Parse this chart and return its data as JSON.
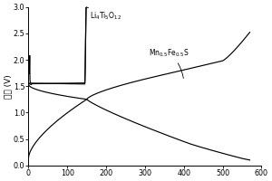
{
  "title": "",
  "xlabel": "",
  "ylabel": "电压 (V)",
  "xlim": [
    0,
    600
  ],
  "ylim": [
    0.0,
    3.0
  ],
  "xticks": [
    0,
    100,
    200,
    300,
    400,
    500,
    600
  ],
  "yticks": [
    0.0,
    0.5,
    1.0,
    1.5,
    2.0,
    2.5,
    3.0
  ],
  "label1": "Li$_4$Ti$_5$O$_{12}$",
  "label2": "Mn$_{0.5}$Fe$_{0.5}$S",
  "figsize": [
    3.0,
    2.0
  ],
  "dpi": 100
}
